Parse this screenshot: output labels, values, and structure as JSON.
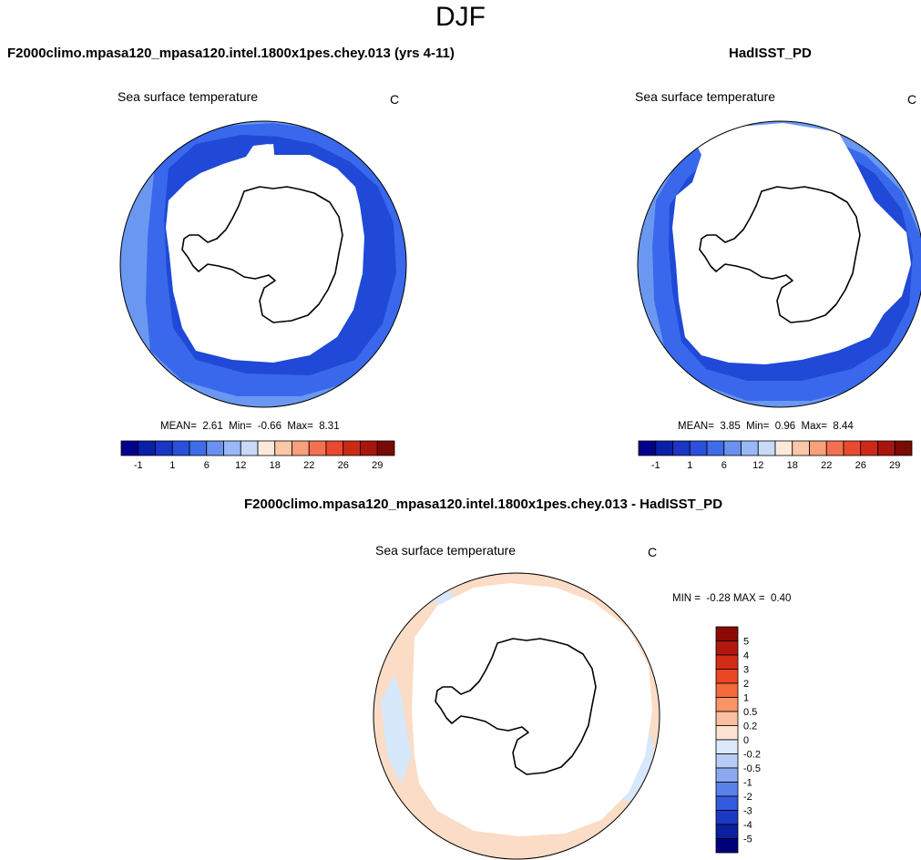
{
  "figure": {
    "season": "DJF"
  },
  "colors": {
    "ocean_dark": "#1f49d6",
    "ocean_mid": "#3a68ec",
    "ocean_light": "#6a98f0",
    "ice": "#ffffff",
    "coast": "#000000",
    "diff_pos": "#fbdcc6",
    "diff_neg": "#d7e8fb"
  },
  "chart_data": [
    {
      "type": "heatmap",
      "projection": "south-polar-stereographic",
      "title": "F2000climo.mpasa120_mpasa120.intel.1800x1pes.chey.013 (yrs 4-11)",
      "variable": "Sea surface temperature",
      "units": "C",
      "stats": {
        "mean_label": "MEAN=",
        "mean": "2.61",
        "min_label": "Min=",
        "min": "-0.66",
        "max_label": "Max=",
        "max": "8.31"
      },
      "colorbar": {
        "orientation": "horizontal",
        "tick_labels": [
          "-1",
          "1",
          "6",
          "12",
          "18",
          "22",
          "26",
          "29"
        ],
        "colors": [
          "#00008b",
          "#0a1fa8",
          "#1a36c4",
          "#2a50dc",
          "#3f6ce8",
          "#6a90f0",
          "#9ab8f5",
          "#c8daf8",
          "#fde9da",
          "#fbc7a7",
          "#f8a07a",
          "#f37150",
          "#e9492f",
          "#cc2a16",
          "#a8150c",
          "#7a0a06"
        ]
      }
    },
    {
      "type": "heatmap",
      "projection": "south-polar-stereographic",
      "title": "HadISST_PD",
      "variable": "Sea surface temperature",
      "units": "C",
      "stats": {
        "mean_label": "MEAN=",
        "mean": "3.85",
        "min_label": "Min=",
        "min": "0.96",
        "max_label": "Max=",
        "max": "8.44"
      },
      "colorbar": {
        "orientation": "horizontal",
        "tick_labels": [
          "-1",
          "1",
          "6",
          "12",
          "18",
          "22",
          "26",
          "29"
        ],
        "colors": [
          "#00008b",
          "#0a1fa8",
          "#1a36c4",
          "#2a50dc",
          "#3f6ce8",
          "#6a90f0",
          "#9ab8f5",
          "#c8daf8",
          "#fde9da",
          "#fbc7a7",
          "#f8a07a",
          "#f37150",
          "#e9492f",
          "#cc2a16",
          "#a8150c",
          "#7a0a06"
        ]
      }
    },
    {
      "type": "heatmap",
      "projection": "south-polar-stereographic",
      "title": "F2000climo.mpasa120_mpasa120.intel.1800x1pes.chey.013 - HadISST_PD",
      "variable": "Sea surface temperature",
      "units": "C",
      "stats": {
        "min_label": "MIN =",
        "min": "-0.28",
        "max_label": "MAX =",
        "max": "0.40"
      },
      "colorbar": {
        "orientation": "vertical",
        "tick_labels": [
          "5",
          "4",
          "3",
          "2",
          "1",
          "0.5",
          "0.2",
          "0",
          "-0.2",
          "-0.5",
          "-1",
          "-2",
          "-3",
          "-4",
          "-5"
        ],
        "colors": [
          "#8b0a06",
          "#b2180e",
          "#d42b17",
          "#eb4725",
          "#f56a3c",
          "#fb9466",
          "#fbbfa0",
          "#fde4d2",
          "#dce9fb",
          "#b8cdf6",
          "#8aa9f1",
          "#5a82ea",
          "#3359e0",
          "#1c38c4",
          "#0c1fa0",
          "#00007a"
        ]
      }
    }
  ]
}
